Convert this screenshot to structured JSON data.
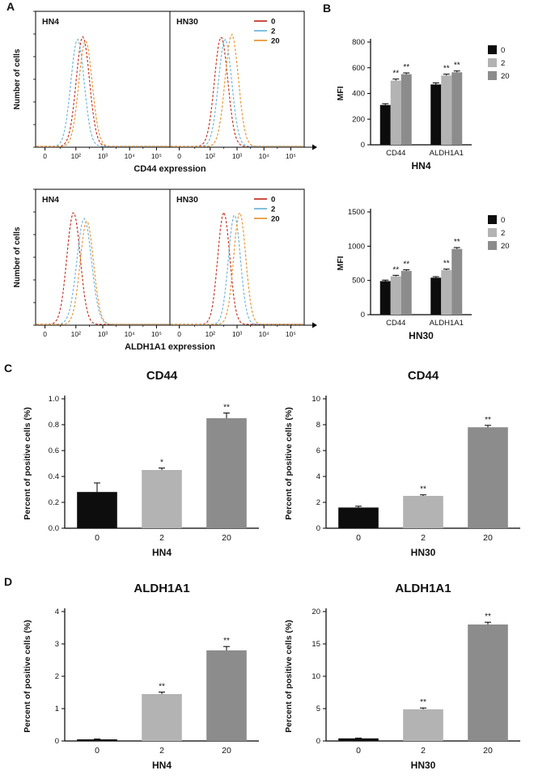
{
  "panels": {
    "a_label": "A",
    "b_label": "B",
    "c_label": "C",
    "d_label": "D"
  },
  "chart_data": [
    {
      "id": "flow-cd44",
      "type": "flow-histogram",
      "ylabel": "Number of cells",
      "xlabel": "CD44 expression",
      "xticks": [
        "0",
        "10²",
        "10³",
        "10⁴",
        "10⁵"
      ],
      "legend": [
        {
          "label": "0",
          "color": "#c43b2e"
        },
        {
          "label": "2",
          "color": "#74b7dd"
        },
        {
          "label": "20",
          "color": "#e89a3c"
        }
      ],
      "panels": [
        {
          "name": "HN4",
          "curves": [
            {
              "label": "0",
              "color": "#c43b2e",
              "mean": 0.35,
              "sigma": 0.05,
              "height": 0.88
            },
            {
              "label": "2",
              "color": "#74b7dd",
              "mean": 0.31,
              "sigma": 0.05,
              "height": 0.86
            },
            {
              "label": "20",
              "color": "#e89a3c",
              "mean": 0.37,
              "sigma": 0.05,
              "height": 0.85
            }
          ]
        },
        {
          "name": "HN30",
          "curves": [
            {
              "label": "0",
              "color": "#c43b2e",
              "mean": 0.38,
              "sigma": 0.05,
              "height": 0.88
            },
            {
              "label": "2",
              "color": "#74b7dd",
              "mean": 0.41,
              "sigma": 0.05,
              "height": 0.86
            },
            {
              "label": "20",
              "color": "#e89a3c",
              "mean": 0.46,
              "sigma": 0.05,
              "height": 0.9
            }
          ]
        }
      ]
    },
    {
      "id": "flow-aldh1a1",
      "type": "flow-histogram",
      "ylabel": "Number of cells",
      "xlabel": "ALDH1A1 expression",
      "xticks": [
        "0",
        "10²",
        "10³",
        "10⁴",
        "10⁵"
      ],
      "legend": [
        {
          "label": "0",
          "color": "#c43b2e"
        },
        {
          "label": "2",
          "color": "#74b7dd"
        },
        {
          "label": "20",
          "color": "#e89a3c"
        }
      ],
      "panels": [
        {
          "name": "HN4",
          "curves": [
            {
              "label": "0",
              "color": "#c43b2e",
              "mean": 0.28,
              "sigma": 0.05,
              "height": 0.9
            },
            {
              "label": "2",
              "color": "#74b7dd",
              "mean": 0.36,
              "sigma": 0.055,
              "height": 0.85
            },
            {
              "label": "20",
              "color": "#e89a3c",
              "mean": 0.38,
              "sigma": 0.05,
              "height": 0.83
            }
          ]
        },
        {
          "name": "HN30",
          "curves": [
            {
              "label": "0",
              "color": "#c43b2e",
              "mean": 0.4,
              "sigma": 0.045,
              "height": 0.9
            },
            {
              "label": "2",
              "color": "#74b7dd",
              "mean": 0.48,
              "sigma": 0.045,
              "height": 0.88
            },
            {
              "label": "20",
              "color": "#e89a3c",
              "mean": 0.52,
              "sigma": 0.045,
              "height": 0.9
            }
          ]
        }
      ]
    },
    {
      "id": "mfi-hn4",
      "type": "bar-grouped",
      "ylabel": "MFI",
      "xlabel": "HN4",
      "ylim": [
        0,
        800
      ],
      "yticks": [
        "0",
        "200",
        "400",
        "600",
        "800"
      ],
      "categories": [
        "CD44",
        "ALDH1A1"
      ],
      "series": [
        {
          "name": "0",
          "color": "#0d0d0d",
          "values": [
            310,
            470
          ],
          "errors": [
            10,
            12
          ],
          "sig": [
            "",
            ""
          ]
        },
        {
          "name": "2",
          "color": "#b3b3b3",
          "values": [
            500,
            540
          ],
          "errors": [
            12,
            10
          ],
          "sig": [
            "**",
            "**"
          ]
        },
        {
          "name": "20",
          "color": "#8c8c8c",
          "values": [
            550,
            565
          ],
          "errors": [
            10,
            10
          ],
          "sig": [
            "**",
            "**"
          ]
        }
      ],
      "legend": [
        {
          "label": "0",
          "color": "#0d0d0d"
        },
        {
          "label": "2",
          "color": "#b3b3b3"
        },
        {
          "label": "20",
          "color": "#8c8c8c"
        }
      ]
    },
    {
      "id": "mfi-hn30",
      "type": "bar-grouped",
      "ylabel": "MFI",
      "xlabel": "HN30",
      "ylim": [
        0,
        1500
      ],
      "yticks": [
        "0",
        "500",
        "1000",
        "1500"
      ],
      "categories": [
        "CD44",
        "ALDH1A1"
      ],
      "series": [
        {
          "name": "0",
          "color": "#0d0d0d",
          "values": [
            490,
            540
          ],
          "errors": [
            15,
            15
          ],
          "sig": [
            "",
            ""
          ]
        },
        {
          "name": "2",
          "color": "#b3b3b3",
          "values": [
            560,
            650
          ],
          "errors": [
            15,
            15
          ],
          "sig": [
            "**",
            "**"
          ]
        },
        {
          "name": "20",
          "color": "#8c8c8c",
          "values": [
            640,
            960
          ],
          "errors": [
            15,
            20
          ],
          "sig": [
            "**",
            "**"
          ]
        }
      ],
      "legend": [
        {
          "label": "0",
          "color": "#0d0d0d"
        },
        {
          "label": "2",
          "color": "#b3b3b3"
        },
        {
          "label": "20",
          "color": "#8c8c8c"
        }
      ]
    },
    {
      "id": "cd44-hn4",
      "type": "bar",
      "title": "CD44",
      "ylabel": "Percent of positive cells (%)",
      "xlabel": "HN4",
      "ylim": [
        0,
        1.0
      ],
      "yticks": [
        "0.0",
        "0.2",
        "0.4",
        "0.6",
        "0.8",
        "1.0"
      ],
      "categories": [
        "0",
        "2",
        "20"
      ],
      "values": [
        0.28,
        0.45,
        0.85
      ],
      "errors": [
        0.07,
        0.015,
        0.04
      ],
      "sig": [
        "",
        "*",
        "**"
      ],
      "colors": [
        "#0d0d0d",
        "#b3b3b3",
        "#8c8c8c"
      ]
    },
    {
      "id": "cd44-hn30",
      "type": "bar",
      "title": "CD44",
      "ylabel": "Percent of positive cells (%)",
      "xlabel": "HN30",
      "ylim": [
        0,
        10
      ],
      "yticks": [
        "0",
        "2",
        "4",
        "6",
        "8",
        "10"
      ],
      "categories": [
        "0",
        "2",
        "20"
      ],
      "values": [
        1.6,
        2.5,
        7.8
      ],
      "errors": [
        0.1,
        0.08,
        0.15
      ],
      "sig": [
        "",
        "**",
        "**"
      ],
      "colors": [
        "#0d0d0d",
        "#b3b3b3",
        "#8c8c8c"
      ]
    },
    {
      "id": "aldh1a1-hn4",
      "type": "bar",
      "title": "ALDH1A1",
      "ylabel": "Percent of positive cells (%)",
      "xlabel": "HN4",
      "ylim": [
        0,
        4
      ],
      "yticks": [
        "0",
        "1",
        "2",
        "3",
        "4"
      ],
      "categories": [
        "0",
        "2",
        "20"
      ],
      "values": [
        0.05,
        1.45,
        2.8
      ],
      "errors": [
        0.01,
        0.06,
        0.12
      ],
      "sig": [
        "",
        "**",
        "**"
      ],
      "colors": [
        "#0d0d0d",
        "#b3b3b3",
        "#8c8c8c"
      ]
    },
    {
      "id": "aldh1a1-hn30",
      "type": "bar",
      "title": "ALDH1A1",
      "ylabel": "Percent of positive cells (%)",
      "xlabel": "HN30",
      "ylim": [
        0,
        20
      ],
      "yticks": [
        "0",
        "5",
        "10",
        "15",
        "20"
      ],
      "categories": [
        "0",
        "2",
        "20"
      ],
      "values": [
        0.4,
        4.9,
        18
      ],
      "errors": [
        0.05,
        0.2,
        0.35
      ],
      "sig": [
        "",
        "**",
        "**"
      ],
      "colors": [
        "#0d0d0d",
        "#b3b3b3",
        "#8c8c8c"
      ]
    }
  ]
}
